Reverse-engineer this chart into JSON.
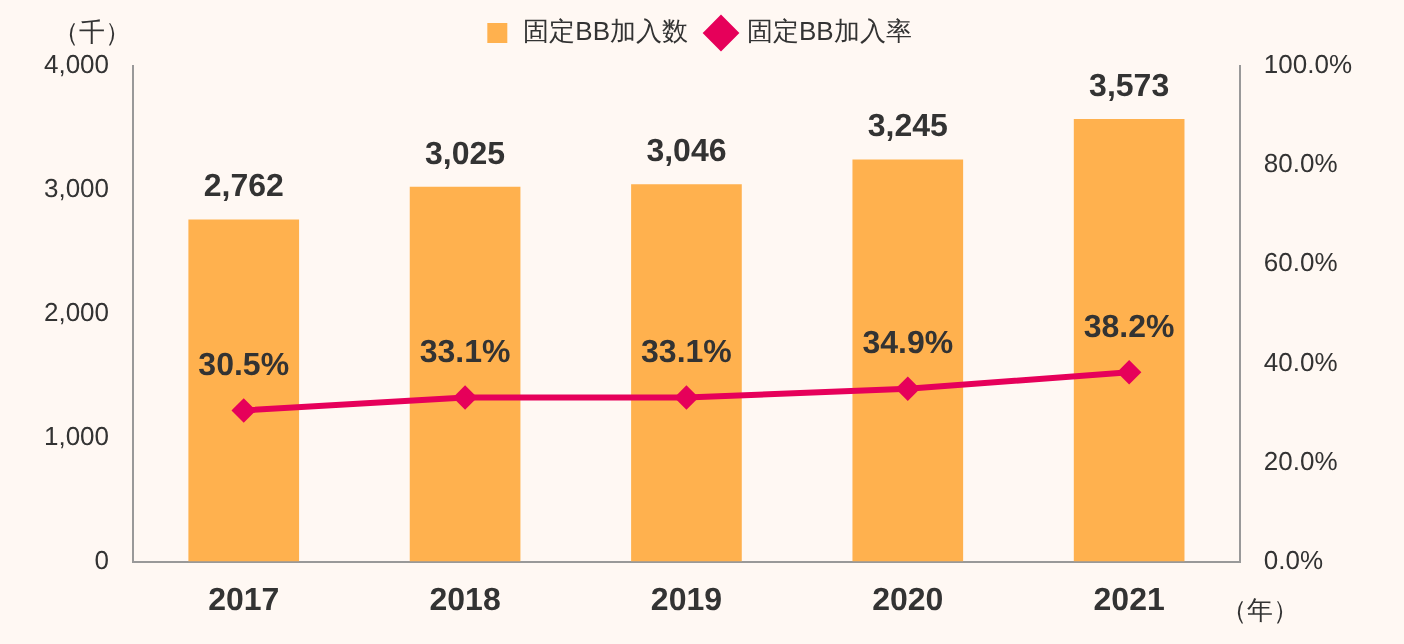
{
  "chart_data": {
    "type": "bar",
    "categories": [
      "2017",
      "2018",
      "2019",
      "2020",
      "2021"
    ],
    "ylabel": "（千）",
    "xlabel": "（年）",
    "series": [
      {
        "name": "固定BB加入数",
        "color": "#ffb14e",
        "values": [
          2762,
          3025,
          3046,
          3245,
          3573
        ]
      },
      {
        "name": "固定BB加入率",
        "type": "line",
        "axis": "y2",
        "color": "#e6005a",
        "values": [
          30.5,
          33.1,
          33.1,
          34.9,
          38.2
        ],
        "value_labels": [
          "30.5%",
          "33.1%",
          "33.1%",
          "34.9%",
          "38.2%"
        ]
      }
    ],
    "ylim": [
      0,
      4000
    ],
    "yticks": [
      {
        "value": 0,
        "label": "0"
      },
      {
        "value": 1000,
        "label": "1,000"
      },
      {
        "value": 2000,
        "label": "2,000"
      },
      {
        "value": 3000,
        "label": "3,000"
      },
      {
        "value": 4000,
        "label": "4,000"
      }
    ],
    "y2lim": [
      0,
      100
    ],
    "y2ticks": [
      {
        "value": 0,
        "label": "0.0%"
      },
      {
        "value": 20,
        "label": "20.0%"
      },
      {
        "value": 40,
        "label": "40.0%"
      },
      {
        "value": 60,
        "label": "60.0%"
      },
      {
        "value": 80,
        "label": "80.0%"
      },
      {
        "value": 100,
        "label": "100.0%"
      }
    ],
    "value_labels": [
      "2,762",
      "3,025",
      "3,046",
      "3,245",
      "3,573"
    ],
    "grid": false,
    "legend": "top",
    "marker": "diamond",
    "line_style": "solid"
  }
}
